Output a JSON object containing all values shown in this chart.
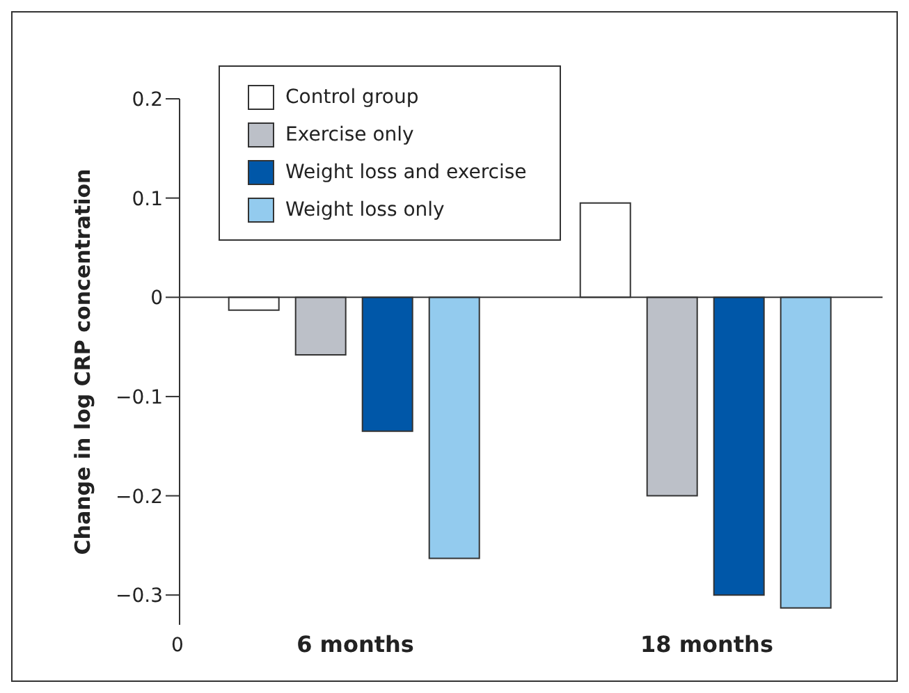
{
  "chart_data": {
    "type": "bar",
    "ylabel": "Change in log CRP concentration",
    "categories": [
      "6 months",
      "18 months"
    ],
    "series": [
      {
        "name": "Control group",
        "color": "#ffffff",
        "values": [
          -0.013,
          0.095
        ]
      },
      {
        "name": "Exercise only",
        "color": "#bcc0c8",
        "values": [
          -0.058,
          -0.2
        ]
      },
      {
        "name": "Weight loss and exercise",
        "color": "#0057a8",
        "values": [
          -0.135,
          -0.3
        ]
      },
      {
        "name": "Weight loss only",
        "color": "#93cbee",
        "values": [
          -0.263,
          -0.313
        ]
      }
    ],
    "ylim": [
      -0.33,
      0.2
    ],
    "yticks": [
      {
        "value": -0.3,
        "label": "−0.3"
      },
      {
        "value": -0.2,
        "label": "−0.2"
      },
      {
        "value": -0.1,
        "label": "−0.1"
      },
      0,
      0.1,
      0.2
    ],
    "grid": false,
    "ref_lines": [
      {
        "axis": "y",
        "value": 0
      }
    ],
    "legend": "top left",
    "annotations": [
      "0"
    ]
  }
}
